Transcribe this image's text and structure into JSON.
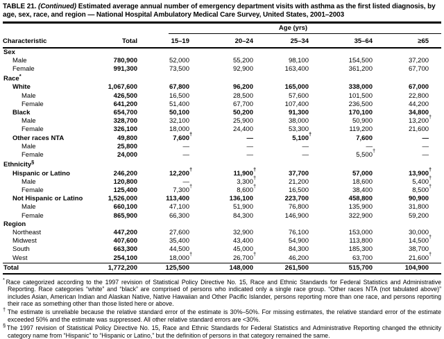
{
  "title": {
    "prefix": "TABLE 21. ",
    "continued": "(Continued)",
    "rest": " Estimated average annual number of emergency department visits with asthma as the first listed diagnosis, by age, sex, race, and region — National Hospital Ambulatory Medical Care Survey, United States, 2001–2003"
  },
  "table": {
    "age_header": "Age (yrs)",
    "char_header": "Characteristic",
    "columns": [
      "Total",
      "15–19",
      "20–24",
      "25–34",
      "35–64",
      "≥65"
    ],
    "rows": [
      {
        "label": "Sex",
        "sup": "",
        "level": 0,
        "bold": true,
        "values": [
          "",
          "",
          "",
          "",
          "",
          ""
        ]
      },
      {
        "label": "Male",
        "sup": "",
        "level": 1,
        "bold": false,
        "values": [
          "780,900",
          "52,000",
          "55,200",
          "98,100",
          "154,500",
          "37,200"
        ]
      },
      {
        "label": "Female",
        "sup": "",
        "level": 1,
        "bold": false,
        "values": [
          "991,300",
          "73,500",
          "92,900",
          "163,400",
          "361,200",
          "67,700"
        ]
      },
      {
        "label": "Race",
        "sup": "*",
        "level": 0,
        "bold": true,
        "values": [
          "",
          "",
          "",
          "",
          "",
          ""
        ]
      },
      {
        "label": "White",
        "sup": "",
        "level": 1,
        "bold": true,
        "values": [
          "1,067,600",
          "67,800",
          "96,200",
          "165,000",
          "338,000",
          "67,000"
        ]
      },
      {
        "label": "Male",
        "sup": "",
        "level": 2,
        "bold": false,
        "values": [
          "426,500",
          "16,500",
          "28,500",
          "57,600",
          "101,500",
          "22,800"
        ]
      },
      {
        "label": "Female",
        "sup": "",
        "level": 2,
        "bold": false,
        "values": [
          "641,200",
          "51,400",
          "67,700",
          "107,400",
          "236,500",
          "44,200"
        ]
      },
      {
        "label": "Black",
        "sup": "",
        "level": 1,
        "bold": true,
        "values": [
          "654,700",
          "50,100",
          "50,200",
          "91,300",
          "170,100",
          "34,800"
        ]
      },
      {
        "label": "Male",
        "sup": "",
        "level": 2,
        "bold": false,
        "values": [
          "328,700",
          "32,100",
          "25,900",
          "38,000",
          "50,900",
          "13,200†"
        ]
      },
      {
        "label": "Female",
        "sup": "",
        "level": 2,
        "bold": false,
        "values": [
          "326,100",
          "18,000",
          "24,400",
          "53,300",
          "119,200",
          "21,600"
        ]
      },
      {
        "label": "Other races NTA",
        "sup": "",
        "level": 1,
        "bold": true,
        "values": [
          "49,800",
          "7,600†",
          "—",
          "5,100†",
          "7,600",
          "—"
        ]
      },
      {
        "label": "Male",
        "sup": "",
        "level": 2,
        "bold": false,
        "values": [
          "25,800",
          "—",
          "—",
          "—",
          "—",
          "—"
        ]
      },
      {
        "label": "Female",
        "sup": "",
        "level": 2,
        "bold": false,
        "values": [
          "24,000",
          "—",
          "—",
          "—",
          "5,500†",
          "—"
        ]
      },
      {
        "label": "Ethnicity",
        "sup": "§",
        "level": 0,
        "bold": true,
        "values": [
          "",
          "",
          "",
          "",
          "",
          ""
        ]
      },
      {
        "label": "Hispanic or Latino",
        "sup": "",
        "level": 1,
        "bold": true,
        "values": [
          "246,200",
          "12,200†",
          "11,900†",
          "37,700",
          "57,000",
          "13,900†"
        ]
      },
      {
        "label": "Male",
        "sup": "",
        "level": 2,
        "bold": false,
        "values": [
          "120,800",
          "—",
          "3,300†",
          "21,200",
          "18,600",
          "5,400†"
        ]
      },
      {
        "label": "Female",
        "sup": "",
        "level": 2,
        "bold": false,
        "values": [
          "125,400",
          "7,300†",
          "8,600†",
          "16,500",
          "38,400",
          "8,500†"
        ]
      },
      {
        "label": "Not Hispanic or Latino",
        "sup": "",
        "level": 1,
        "bold": true,
        "values": [
          "1,526,000",
          "113,400",
          "136,100",
          "223,700",
          "458,800",
          "90,900"
        ]
      },
      {
        "label": "Male",
        "sup": "",
        "level": 2,
        "bold": false,
        "values": [
          "660,100",
          "47,100",
          "51,900",
          "76,800",
          "135,900",
          "31,800"
        ]
      },
      {
        "label": "Female",
        "sup": "",
        "level": 2,
        "bold": false,
        "values": [
          "865,900",
          "66,300",
          "84,300",
          "146,900",
          "322,900",
          "59,200"
        ]
      },
      {
        "label": "Region",
        "sup": "",
        "level": 0,
        "bold": true,
        "values": [
          "",
          "",
          "",
          "",
          "",
          ""
        ]
      },
      {
        "label": "Northeast",
        "sup": "",
        "level": 1,
        "bold": false,
        "values": [
          "447,200",
          "27,600",
          "32,900",
          "76,100",
          "153,000",
          "30,000"
        ]
      },
      {
        "label": "Midwest",
        "sup": "",
        "level": 1,
        "bold": false,
        "values": [
          "407,600",
          "35,400",
          "43,400",
          "54,900",
          "113,800",
          "14,500†"
        ]
      },
      {
        "label": "South",
        "sup": "",
        "level": 1,
        "bold": false,
        "values": [
          "663,300",
          "44,500",
          "45,000",
          "84,300",
          "185,300",
          "38,700"
        ]
      },
      {
        "label": "West",
        "sup": "",
        "level": 1,
        "bold": false,
        "values": [
          "254,100",
          "18,000†",
          "26,700†",
          "46,200",
          "63,700",
          "21,600†"
        ]
      },
      {
        "label": "Total",
        "sup": "",
        "level": 0,
        "bold": true,
        "total_row": true,
        "values": [
          "1,772,200",
          "125,500",
          "148,000",
          "261,500",
          "515,700",
          "104,900"
        ]
      }
    ]
  },
  "footnotes": [
    {
      "marker": "*",
      "text": "Race categorized according to the 1997 revision of Statistical Policy Directive No. 15, Race and Ethnic Standards for Federal Statistics and Administrative Reporting. Race categories “white” and “black” are comprised of persons who indicated only a single race group. “Other races NTA (not tabulated above)” includes Asian, American Indian and Alaskan Native, Native Hawaiian and Other Pacific Islander, persons reporting more than one race, and persons reporting their race as something other than those listed here or above."
    },
    {
      "marker": "†",
      "text": "The estimate is unreliable because the relative standard error of the estimate is 30%–50%. For missing estimates, the relative standard error of the estimate exceeded 50% and the estimate was suppressed. All other relative standard errors are <30%."
    },
    {
      "marker": "§",
      "text": "The 1997 revision of Statistical Policy Directive No. 15, Race and Ethnic Standards for Federal Statistics and Administrative Reporting changed the ethnicity category name from “Hispanic” to “Hispanic or Latino,” but the definition of persons in that category remained the same."
    }
  ]
}
